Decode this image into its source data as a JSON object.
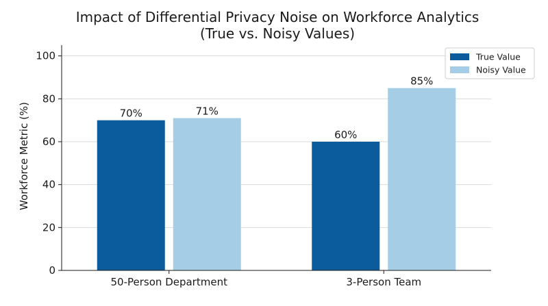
{
  "chart_data": {
    "type": "bar",
    "title": "Impact of Differential Privacy Noise on Workforce Analytics",
    "subtitle": "(True vs. Noisy Values)",
    "xlabel": "",
    "ylabel": "Workforce Metric (%)",
    "categories": [
      "50-Person Department",
      "3-Person Team"
    ],
    "series": [
      {
        "name": "True Value",
        "values": [
          70,
          60
        ],
        "labels": [
          "70%",
          "60%"
        ],
        "color": "#0b5c9c"
      },
      {
        "name": "Noisy Value",
        "values": [
          71,
          85
        ],
        "labels": [
          "71%",
          "85%"
        ],
        "color": "#a6cde6"
      }
    ],
    "ylim": [
      0,
      105
    ],
    "yticks": [
      0,
      20,
      40,
      60,
      80,
      100
    ],
    "grid": "horizontal",
    "legend_position": "top-right"
  }
}
